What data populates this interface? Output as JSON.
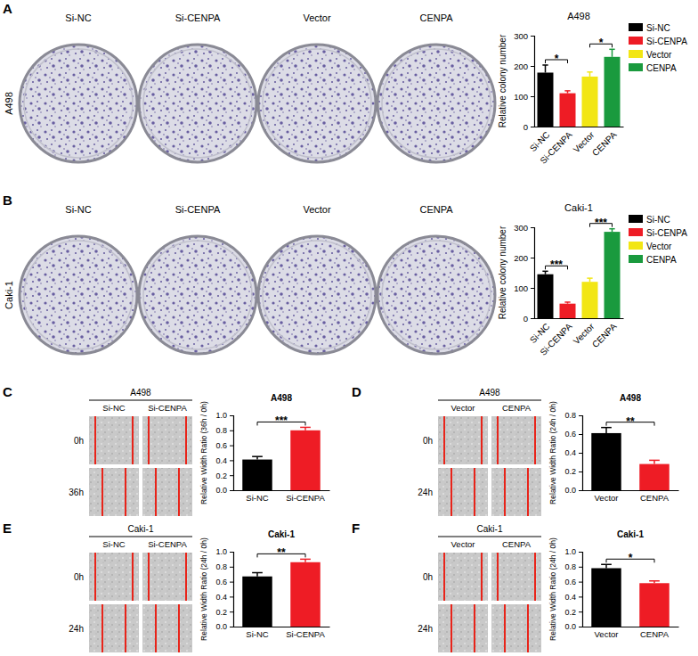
{
  "chart_data": [
    {
      "type": "bar",
      "panel": "A",
      "title": "A498",
      "images": {
        "row_labels": [
          "A498"
        ],
        "column_labels": [
          "Si-NC",
          "Si-CENPA",
          "Vector",
          "CENPA"
        ]
      },
      "y_label": "Relative colony number",
      "categories": [
        "Si-NC",
        "Si-CENPA",
        "Vector",
        "CENPA"
      ],
      "values": [
        178,
        110,
        165,
        230
      ],
      "errors": [
        25,
        8,
        15,
        25
      ],
      "colors": [
        "#000000",
        "#ee1c25",
        "#f2e614",
        "#1a9a3e"
      ],
      "ylim": [
        0,
        300
      ],
      "yticks": [
        0,
        100,
        200,
        300
      ],
      "legend": "right",
      "annotations": [
        {
          "text": "*",
          "from": 0,
          "to": 1
        },
        {
          "text": "*",
          "from": 2,
          "to": 3
        }
      ]
    },
    {
      "type": "bar",
      "panel": "B",
      "title": "Caki-1",
      "images": {
        "row_labels": [
          "Caki-1"
        ],
        "column_labels": [
          "Si-NC",
          "Si-CENPA",
          "Vector",
          "CENPA"
        ]
      },
      "y_label": "Relative colony number",
      "categories": [
        "Si-NC",
        "Si-CENPA",
        "Vector",
        "CENPA"
      ],
      "values": [
        145,
        48,
        120,
        285
      ],
      "errors": [
        10,
        5,
        12,
        10
      ],
      "colors": [
        "#000000",
        "#ee1c25",
        "#f2e614",
        "#1a9a3e"
      ],
      "ylim": [
        0,
        300
      ],
      "yticks": [
        0,
        100,
        200,
        300
      ],
      "legend": "right",
      "annotations": [
        {
          "text": "***",
          "from": 0,
          "to": 1
        },
        {
          "text": "***",
          "from": 2,
          "to": 3
        }
      ]
    },
    {
      "type": "bar",
      "panel": "C",
      "title": "A498",
      "images": {
        "title": "A498",
        "row_labels": [
          "0h",
          "36h"
        ],
        "column_labels": [
          "Si-NC",
          "Si-CENPA"
        ]
      },
      "y_label": "Relative Width Ratio (36h / 0h)",
      "categories": [
        "Si-NC",
        "Si-CENPA"
      ],
      "values": [
        0.41,
        0.8
      ],
      "errors": [
        0.04,
        0.04
      ],
      "colors": [
        "#000000",
        "#ee1c25"
      ],
      "ylim": [
        0,
        1.0
      ],
      "yticks": [
        {
          "value": 0,
          "label": "0.0"
        },
        {
          "value": 0.2,
          "label": "0.2"
        },
        {
          "value": 0.4,
          "label": "0.4"
        },
        {
          "value": 0.6,
          "label": "0.6"
        },
        {
          "value": 0.8,
          "label": "0.8"
        },
        {
          "value": 1.0,
          "label": "1.0"
        }
      ],
      "annotations": [
        {
          "text": "***",
          "from": 0,
          "to": 1
        }
      ]
    },
    {
      "type": "bar",
      "panel": "D",
      "title": "A498",
      "images": {
        "title": "A498",
        "row_labels": [
          "0h",
          "24h"
        ],
        "column_labels": [
          "Vector",
          "CENPA"
        ]
      },
      "y_label": "Relative Width Ratio (24h / 0h)",
      "categories": [
        "Vector",
        "CENPA"
      ],
      "values": [
        0.61,
        0.28
      ],
      "errors": [
        0.06,
        0.04
      ],
      "colors": [
        "#000000",
        "#ee1c25"
      ],
      "ylim": [
        0,
        0.8
      ],
      "yticks": [
        {
          "value": 0,
          "label": "0.0"
        },
        {
          "value": 0.2,
          "label": "0.2"
        },
        {
          "value": 0.4,
          "label": "0.4"
        },
        {
          "value": 0.6,
          "label": "0.6"
        },
        {
          "value": 0.8,
          "label": "0.8"
        }
      ],
      "annotations": [
        {
          "text": "**",
          "from": 0,
          "to": 1
        }
      ]
    },
    {
      "type": "bar",
      "panel": "E",
      "title": "Caki-1",
      "images": {
        "title": "Caki-1",
        "row_labels": [
          "0h",
          "24h"
        ],
        "column_labels": [
          "Si-NC",
          "Si-CENPA"
        ]
      },
      "y_label": "Relative Width Ratio (24h / 0h)",
      "categories": [
        "Si-NC",
        "Si-CENPA"
      ],
      "values": [
        0.67,
        0.86
      ],
      "errors": [
        0.05,
        0.04
      ],
      "colors": [
        "#000000",
        "#ee1c25"
      ],
      "ylim": [
        0,
        1.0
      ],
      "yticks": [
        {
          "value": 0,
          "label": "0.0"
        },
        {
          "value": 0.2,
          "label": "0.2"
        },
        {
          "value": 0.4,
          "label": "0.4"
        },
        {
          "value": 0.6,
          "label": "0.6"
        },
        {
          "value": 0.8,
          "label": "0.8"
        },
        {
          "value": 1.0,
          "label": "1.0"
        }
      ],
      "annotations": [
        {
          "text": "**",
          "from": 0,
          "to": 1
        }
      ]
    },
    {
      "type": "bar",
      "panel": "F",
      "title": "Caki-1",
      "images": {
        "title": "Caki-1",
        "row_labels": [
          "0h",
          "24h"
        ],
        "column_labels": [
          "Vector",
          "CENPA"
        ]
      },
      "y_label": "Relative Width Ratio (24h / 0h)",
      "categories": [
        "Vector",
        "CENPA"
      ],
      "values": [
        0.78,
        0.58
      ],
      "errors": [
        0.05,
        0.03
      ],
      "colors": [
        "#000000",
        "#ee1c25"
      ],
      "ylim": [
        0,
        1.0
      ],
      "yticks": [
        {
          "value": 0,
          "label": "0.0"
        },
        {
          "value": 0.2,
          "label": "0.2"
        },
        {
          "value": 0.4,
          "label": "0.4"
        },
        {
          "value": 0.6,
          "label": "0.6"
        },
        {
          "value": 0.8,
          "label": "0.8"
        },
        {
          "value": 1.0,
          "label": "1.0"
        }
      ],
      "annotations": [
        {
          "text": "*",
          "from": 0,
          "to": 1
        }
      ]
    }
  ]
}
